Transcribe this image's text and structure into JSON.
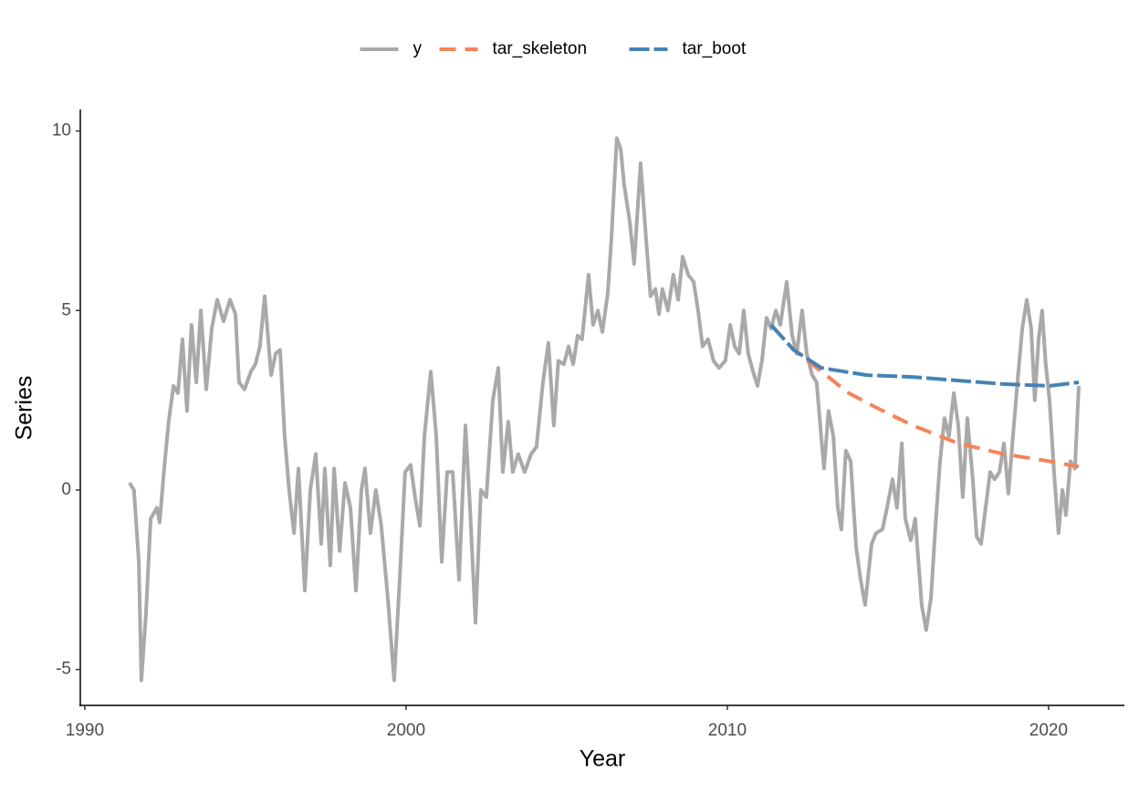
{
  "chart_data": {
    "type": "line",
    "xlabel": "Year",
    "ylabel": "Series",
    "xlim": [
      1989.86,
      2022.36
    ],
    "xticks": [
      1990,
      2000,
      2010,
      2020
    ],
    "ylim": [
      -6.0,
      10.6
    ],
    "yticks": [
      -5,
      0,
      5,
      10
    ],
    "grid": false,
    "legend": "top",
    "series": [
      {
        "name": "y",
        "color": "#a9a9a9",
        "dash": "solid",
        "x": [
          1991.39,
          1991.53,
          1991.68,
          1991.76,
          1991.9,
          1992.05,
          1992.24,
          1992.33,
          1992.47,
          1992.61,
          1992.76,
          1992.9,
          1993.04,
          1993.18,
          1993.32,
          1993.47,
          1993.61,
          1993.78,
          1993.95,
          1994.12,
          1994.32,
          1994.52,
          1994.69,
          1994.8,
          1994.97,
          1995.17,
          1995.31,
          1995.45,
          1995.6,
          1995.8,
          1995.94,
          1996.08,
          1996.22,
          1996.36,
          1996.51,
          1996.65,
          1996.85,
          1997.02,
          1997.19,
          1997.36,
          1997.47,
          1997.64,
          1997.76,
          1997.93,
          1998.1,
          1998.27,
          1998.44,
          1998.61,
          1998.72,
          1998.89,
          1999.06,
          1999.23,
          1999.43,
          1999.63,
          1999.8,
          1999.97,
          2000.14,
          2000.28,
          2000.43,
          2000.57,
          2000.77,
          2000.94,
          2001.11,
          2001.28,
          2001.45,
          2001.65,
          2001.85,
          2001.99,
          2002.16,
          2002.33,
          2002.5,
          2002.7,
          2002.87,
          2003.01,
          2003.18,
          2003.32,
          2003.49,
          2003.69,
          2003.89,
          2004.06,
          2004.26,
          2004.43,
          2004.6,
          2004.74,
          2004.91,
          2005.06,
          2005.2,
          2005.34,
          2005.48,
          2005.68,
          2005.82,
          2005.97,
          2006.11,
          2006.28,
          2006.39,
          2006.56,
          2006.68,
          2006.79,
          2006.96,
          2007.1,
          2007.3,
          2007.47,
          2007.61,
          2007.76,
          2007.87,
          2007.98,
          2008.15,
          2008.32,
          2008.47,
          2008.61,
          2008.78,
          2008.95,
          2009.09,
          2009.23,
          2009.4,
          2009.57,
          2009.74,
          2009.94,
          2010.09,
          2010.23,
          2010.37,
          2010.51,
          2010.65,
          2010.8,
          2010.94,
          2011.08,
          2011.22,
          2011.36,
          2011.51,
          2011.65,
          2011.85,
          2012.02,
          2012.16,
          2012.33,
          2012.47,
          2012.64,
          2012.78,
          2012.93,
          2013.01,
          2013.15,
          2013.3,
          2013.44,
          2013.55,
          2013.69,
          2013.84,
          2014.01,
          2014.15,
          2014.29,
          2014.49,
          2014.63,
          2014.83,
          2014.97,
          2015.14,
          2015.28,
          2015.43,
          2015.54,
          2015.71,
          2015.85,
          2016.05,
          2016.19,
          2016.34,
          2016.48,
          2016.62,
          2016.76,
          2016.9,
          2017.05,
          2017.19,
          2017.33,
          2017.47,
          2017.64,
          2017.76,
          2017.9,
          2018.04,
          2018.18,
          2018.32,
          2018.47,
          2018.61,
          2018.75,
          2018.89,
          2019.03,
          2019.18,
          2019.32,
          2019.46,
          2019.57,
          2019.69,
          2019.8,
          2019.91,
          2020.03,
          2020.17,
          2020.31,
          2020.43,
          2020.54,
          2020.68,
          2020.82,
          2020.94
        ],
        "values": [
          0.2,
          0.0,
          -2,
          -5.3,
          -3.5,
          -0.8,
          -0.5,
          -0.9,
          0.6,
          1.9,
          2.9,
          2.7,
          4.2,
          2.2,
          4.6,
          3.0,
          5.0,
          2.8,
          4.5,
          5.3,
          4.7,
          5.3,
          4.9,
          3.0,
          2.8,
          3.3,
          3.5,
          4.0,
          5.4,
          3.2,
          3.8,
          3.9,
          1.5,
          0.0,
          -1.2,
          0.6,
          -2.8,
          0.0,
          1.0,
          -1.5,
          0.6,
          -2.1,
          0.6,
          -1.7,
          0.2,
          -0.5,
          -2.8,
          0.0,
          0.6,
          -1.2,
          0.0,
          -1.0,
          -3.0,
          -5.3,
          -2.5,
          0.5,
          0.7,
          -0.2,
          -1.0,
          1.5,
          3.3,
          1.5,
          -2.0,
          0.5,
          0.5,
          -2.5,
          1.8,
          -0.5,
          -3.7,
          0.0,
          -0.2,
          2.5,
          3.4,
          0.5,
          1.9,
          0.5,
          1.0,
          0.5,
          1.0,
          1.2,
          3.0,
          4.1,
          1.8,
          3.6,
          3.5,
          4.0,
          3.5,
          4.3,
          4.2,
          6.0,
          4.6,
          5.0,
          4.4,
          5.5,
          7.0,
          9.8,
          9.5,
          8.5,
          7.5,
          6.3,
          9.1,
          7.0,
          5.4,
          5.6,
          4.9,
          5.6,
          5.0,
          6.0,
          5.3,
          6.5,
          6.0,
          5.8,
          5.0,
          4.0,
          4.2,
          3.6,
          3.4,
          3.6,
          4.6,
          4.0,
          3.8,
          5.0,
          3.8,
          3.3,
          2.9,
          3.6,
          4.8,
          4.5,
          5.0,
          4.6,
          5.8,
          4.3,
          3.8,
          5.0,
          3.8,
          3.2,
          3.0,
          1.4,
          0.6,
          2.2,
          1.5,
          -0.5,
          -1.1,
          1.1,
          0.8,
          -1.6,
          -2.5,
          -3.2,
          -1.5,
          -1.2,
          -1.1,
          -0.5,
          0.3,
          -0.5,
          1.3,
          -0.8,
          -1.4,
          -0.8,
          -3.2,
          -3.9,
          -3.0,
          -1.0,
          0.8,
          2.0,
          1.5,
          2.7,
          1.8,
          -0.2,
          2.0,
          0.3,
          -1.3,
          -1.5,
          -0.5,
          0.5,
          0.3,
          0.5,
          1.3,
          -0.1,
          1.5,
          3.0,
          4.5,
          5.3,
          4.5,
          2.5,
          4.2,
          5.0,
          3.5,
          2.5,
          0.5,
          -1.2,
          0.0,
          -0.7,
          0.8,
          0.6,
          2.9
        ]
      },
      {
        "name": "tar_skeleton",
        "color": "#f4845a",
        "dash": "dashed",
        "x": [
          2011.36,
          2012.07,
          2012.93,
          2013.78,
          2014.63,
          2015.77,
          2017.19,
          2018.61,
          2020.03,
          2020.94
        ],
        "values": [
          4.6,
          3.9,
          3.3,
          2.7,
          2.3,
          1.8,
          1.3,
          1.0,
          0.8,
          0.65
        ]
      },
      {
        "name": "tar_boot",
        "color": "#4682b4",
        "dash": "longdash",
        "x": [
          2011.36,
          2012.07,
          2012.93,
          2013.64,
          2014.35,
          2015.77,
          2017.19,
          2018.61,
          2020.03,
          2020.94
        ],
        "values": [
          4.6,
          3.9,
          3.4,
          3.3,
          3.2,
          3.15,
          3.05,
          2.95,
          2.9,
          3.0
        ]
      }
    ]
  }
}
